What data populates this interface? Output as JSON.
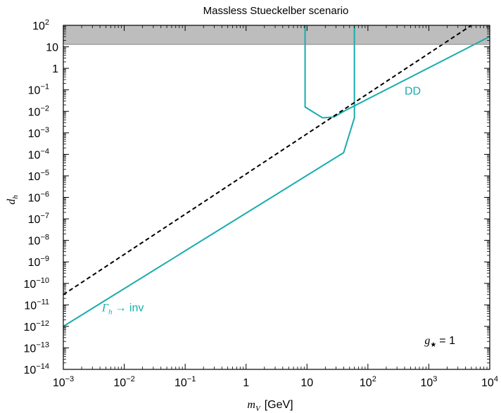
{
  "chart_data": {
    "type": "line",
    "title": "Massless Stueckelber scenario",
    "xlabel": {
      "symbol": "m",
      "sub": "V",
      "unit": "[GeV]"
    },
    "ylabel": {
      "symbol": "d",
      "sub": "h"
    },
    "x_scale": "log",
    "y_scale": "log",
    "xlim": [
      0.001,
      10000
    ],
    "ylim": [
      1e-14,
      100
    ],
    "x_ticks": [
      {
        "value": 0.001,
        "base": "10",
        "exp": "−3"
      },
      {
        "value": 0.01,
        "base": "10",
        "exp": "−2"
      },
      {
        "value": 0.1,
        "base": "10",
        "exp": "−1"
      },
      {
        "value": 1,
        "base": "1",
        "exp": ""
      },
      {
        "value": 10,
        "base": "10",
        "exp": ""
      },
      {
        "value": 100,
        "base": "10",
        "exp": "2"
      },
      {
        "value": 1000,
        "base": "10",
        "exp": "3"
      },
      {
        "value": 10000,
        "base": "10",
        "exp": "4"
      }
    ],
    "y_ticks": [
      {
        "value": 100,
        "base": "10",
        "exp": "2"
      },
      {
        "value": 10,
        "base": "10",
        "exp": ""
      },
      {
        "value": 1,
        "base": "1",
        "exp": ""
      },
      {
        "value": 0.1,
        "base": "10",
        "exp": "−1"
      },
      {
        "value": 0.01,
        "base": "10",
        "exp": "−2"
      },
      {
        "value": 0.001,
        "base": "10",
        "exp": "−3"
      },
      {
        "value": 0.0001,
        "base": "10",
        "exp": "−4"
      },
      {
        "value": 1e-05,
        "base": "10",
        "exp": "−5"
      },
      {
        "value": 1e-06,
        "base": "10",
        "exp": "−6"
      },
      {
        "value": 1e-07,
        "base": "10",
        "exp": "−7"
      },
      {
        "value": 1e-08,
        "base": "10",
        "exp": "−8"
      },
      {
        "value": 1e-09,
        "base": "10",
        "exp": "−9"
      },
      {
        "value": 1e-10,
        "base": "10",
        "exp": "−10"
      },
      {
        "value": 1e-11,
        "base": "10",
        "exp": "−11"
      },
      {
        "value": 1e-12,
        "base": "10",
        "exp": "−12"
      },
      {
        "value": 1e-13,
        "base": "10",
        "exp": "−13"
      },
      {
        "value": 1e-14,
        "base": "10",
        "exp": "−14"
      }
    ],
    "excluded_band": {
      "y_from": 13,
      "y_to": 100,
      "color": "#bdbdbd"
    },
    "series": [
      {
        "id": "gamma-inv",
        "color": "#1aacac",
        "style": "solid",
        "points": [
          [
            0.001,
            1e-12
          ],
          [
            40,
            0.00012
          ],
          [
            60,
            0.005
          ],
          [
            60,
            100
          ]
        ]
      },
      {
        "id": "dd-curve",
        "color": "#1aacac",
        "style": "solid",
        "points": [
          [
            9.3,
            100
          ],
          [
            9.3,
            0.016
          ],
          [
            18,
            0.005
          ],
          [
            28,
            0.0055
          ],
          [
            40,
            0.01
          ],
          [
            10000,
            30
          ]
        ]
      },
      {
        "id": "dashed-line",
        "color": "#000000",
        "style": "dashed",
        "points": [
          [
            0.001,
            3e-11
          ],
          [
            5000,
            100
          ]
        ]
      }
    ],
    "annotations": [
      {
        "id": "dd-label",
        "text": "DD",
        "x": 400,
        "y": 0.06,
        "color": "#1aacac"
      },
      {
        "id": "gamma-label",
        "symbol": "Γ",
        "sub": "h",
        "text": "→ inv",
        "x": 0.0043,
        "y": 5e-12,
        "color": "#1aacac"
      },
      {
        "id": "gstar-label",
        "symbol": "g",
        "sub": "★",
        "text": "= 1",
        "x": 850,
        "y": 1.5e-13,
        "color": "#000000"
      }
    ],
    "grid": false,
    "minor_ticks": true
  }
}
